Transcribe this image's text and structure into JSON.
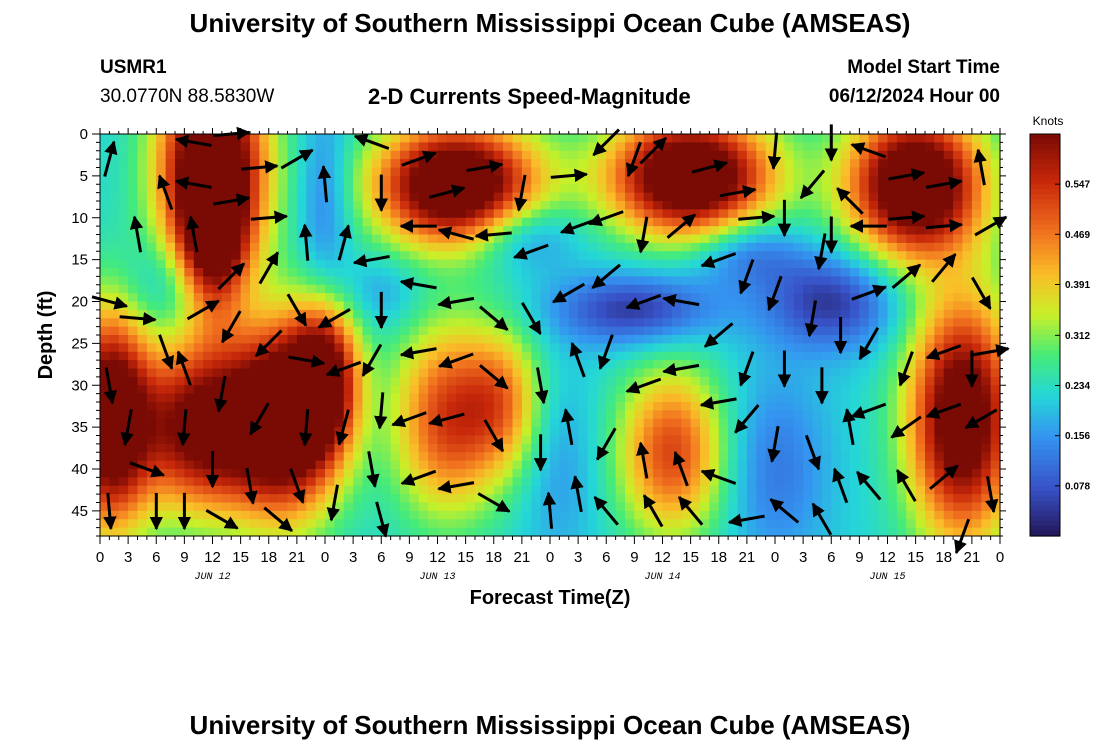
{
  "title": "University of Southern Mississippi Ocean Cube (AMSEAS)",
  "footer_title": "University of Southern Mississippi Ocean Cube (AMSEAS)",
  "station": {
    "id": "USMR1",
    "coords": "30.0770N  88.5830W"
  },
  "model_start": {
    "label": "Model Start Time",
    "value": "06/12/2024 Hour 00"
  },
  "subtitle": "2-D Currents Speed-Magnitude",
  "colors": {
    "vector": "#000000",
    "axis": "#000000"
  },
  "chart_data": {
    "type": "heatmap",
    "title": "2-D Currents Speed-Magnitude",
    "xlabel": "Forecast Time(Z)",
    "ylabel": "Depth (ft)",
    "x_hours": [
      0,
      96
    ],
    "ylim": [
      0,
      48
    ],
    "x_ticks": [
      {
        "h": 0,
        "label": "0"
      },
      {
        "h": 3,
        "label": "3"
      },
      {
        "h": 6,
        "label": "6"
      },
      {
        "h": 9,
        "label": "9"
      },
      {
        "h": 12,
        "label": "12"
      },
      {
        "h": 15,
        "label": "15"
      },
      {
        "h": 18,
        "label": "18"
      },
      {
        "h": 21,
        "label": "21"
      },
      {
        "h": 24,
        "label": "0"
      },
      {
        "h": 27,
        "label": "3"
      },
      {
        "h": 30,
        "label": "6"
      },
      {
        "h": 33,
        "label": "9"
      },
      {
        "h": 36,
        "label": "12"
      },
      {
        "h": 39,
        "label": "15"
      },
      {
        "h": 42,
        "label": "18"
      },
      {
        "h": 45,
        "label": "21"
      },
      {
        "h": 48,
        "label": "0"
      },
      {
        "h": 51,
        "label": "3"
      },
      {
        "h": 54,
        "label": "6"
      },
      {
        "h": 57,
        "label": "9"
      },
      {
        "h": 60,
        "label": "12"
      },
      {
        "h": 63,
        "label": "15"
      },
      {
        "h": 66,
        "label": "18"
      },
      {
        "h": 69,
        "label": "21"
      },
      {
        "h": 72,
        "label": "0"
      },
      {
        "h": 75,
        "label": "3"
      },
      {
        "h": 78,
        "label": "6"
      },
      {
        "h": 81,
        "label": "9"
      },
      {
        "h": 84,
        "label": "12"
      },
      {
        "h": 87,
        "label": "15"
      },
      {
        "h": 90,
        "label": "18"
      },
      {
        "h": 93,
        "label": "21"
      },
      {
        "h": 96,
        "label": "0"
      }
    ],
    "date_labels": [
      {
        "h": 12,
        "label": "JUN 12"
      },
      {
        "h": 36,
        "label": "JUN 13"
      },
      {
        "h": 60,
        "label": "JUN 14"
      },
      {
        "h": 84,
        "label": "JUN 15"
      }
    ],
    "y_ticks": [
      0,
      5,
      10,
      15,
      20,
      25,
      30,
      35,
      40,
      45
    ],
    "colorbar": {
      "unit": "Knots",
      "range": [
        0,
        0.625
      ],
      "ticks": [
        0.078,
        0.156,
        0.234,
        0.312,
        0.391,
        0.469,
        0.547
      ],
      "tick_labels": [
        "0.078",
        "0.156",
        "0.234",
        "0.312",
        "0.391",
        "0.469",
        "0.547"
      ]
    },
    "speed_features": [
      {
        "h": 12,
        "d": 4,
        "sh": 4,
        "sd": 9,
        "amp": 0.55
      },
      {
        "h": 12,
        "d": 14,
        "sh": 2.5,
        "sd": 6,
        "amp": 0.3
      },
      {
        "h": 38,
        "d": 6,
        "sh": 6,
        "sd": 5,
        "amp": 0.55
      },
      {
        "h": 63,
        "d": 5,
        "sh": 6,
        "sd": 5,
        "amp": 0.55
      },
      {
        "h": 87,
        "d": 6,
        "sh": 5,
        "sd": 6,
        "amp": 0.55
      },
      {
        "h": 1,
        "d": 34,
        "sh": 3,
        "sd": 9,
        "amp": 0.5
      },
      {
        "h": 11,
        "d": 35,
        "sh": 5,
        "sd": 7,
        "amp": 0.45
      },
      {
        "h": 20,
        "d": 34,
        "sh": 4,
        "sd": 8,
        "amp": 0.5
      },
      {
        "h": 24,
        "d": 29,
        "sh": 2.5,
        "sd": 6,
        "amp": 0.35
      },
      {
        "h": 37,
        "d": 34,
        "sh": 4,
        "sd": 8,
        "amp": 0.3
      },
      {
        "h": 43,
        "d": 32,
        "sh": 3,
        "sd": 6,
        "amp": 0.2
      },
      {
        "h": 61,
        "d": 38,
        "sh": 4,
        "sd": 7,
        "amp": 0.3
      },
      {
        "h": 92,
        "d": 34,
        "sh": 4,
        "sd": 10,
        "amp": 0.5
      },
      {
        "h": 9,
        "d": 18,
        "sh": 4,
        "sd": 4,
        "amp": -0.1
      },
      {
        "h": 24,
        "d": 8,
        "sh": 2,
        "sd": 8,
        "amp": -0.1
      },
      {
        "h": 45,
        "d": 12,
        "sh": 4,
        "sd": 3,
        "amp": -0.12
      },
      {
        "h": 57,
        "d": 21,
        "sh": 6,
        "sd": 3,
        "amp": -0.18
      },
      {
        "h": 69,
        "d": 14,
        "sh": 4,
        "sd": 3,
        "amp": -0.12
      },
      {
        "h": 78,
        "d": 20,
        "sh": 5,
        "sd": 4,
        "amp": -0.18
      },
      {
        "h": 72,
        "d": 40,
        "sh": 4,
        "sd": 8,
        "amp": -0.1
      },
      {
        "h": 49,
        "d": 40,
        "sh": 3,
        "sd": 8,
        "amp": -0.06
      },
      {
        "h": 30,
        "d": 19,
        "sh": 3,
        "sd": 3,
        "amp": -0.06
      }
    ],
    "vectors": [
      {
        "h": 1,
        "d": 3,
        "deg": 75
      },
      {
        "h": 4,
        "d": 12,
        "deg": 100
      },
      {
        "h": 7,
        "d": 7,
        "deg": 110
      },
      {
        "h": 1,
        "d": 20,
        "deg": -15
      },
      {
        "h": 4,
        "d": 22,
        "deg": -5
      },
      {
        "h": 7,
        "d": 26,
        "deg": -70
      },
      {
        "h": 1,
        "d": 30,
        "deg": -80
      },
      {
        "h": 3,
        "d": 35,
        "deg": -100
      },
      {
        "h": 5,
        "d": 40,
        "deg": -20
      },
      {
        "h": 1,
        "d": 45,
        "deg": -85
      },
      {
        "h": 6,
        "d": 45,
        "deg": -90
      },
      {
        "h": 10,
        "d": 1,
        "deg": 170
      },
      {
        "h": 14,
        "d": 0,
        "deg": 5
      },
      {
        "h": 17,
        "d": 4,
        "deg": 5
      },
      {
        "h": 10,
        "d": 6,
        "deg": 170
      },
      {
        "h": 14,
        "d": 8,
        "deg": 10
      },
      {
        "h": 18,
        "d": 10,
        "deg": 5
      },
      {
        "h": 10,
        "d": 12,
        "deg": 100
      },
      {
        "h": 14,
        "d": 17,
        "deg": 45
      },
      {
        "h": 18,
        "d": 16,
        "deg": 60
      },
      {
        "h": 11,
        "d": 21,
        "deg": 30
      },
      {
        "h": 14,
        "d": 23,
        "deg": -120
      },
      {
        "h": 18,
        "d": 25,
        "deg": -135
      },
      {
        "h": 9,
        "d": 28,
        "deg": 110
      },
      {
        "h": 13,
        "d": 31,
        "deg": -100
      },
      {
        "h": 17,
        "d": 34,
        "deg": -120
      },
      {
        "h": 9,
        "d": 35,
        "deg": -95
      },
      {
        "h": 12,
        "d": 40,
        "deg": -90
      },
      {
        "h": 16,
        "d": 42,
        "deg": -80
      },
      {
        "h": 9,
        "d": 45,
        "deg": -90
      },
      {
        "h": 13,
        "d": 46,
        "deg": -30
      },
      {
        "h": 19,
        "d": 46,
        "deg": -40
      },
      {
        "h": 21,
        "d": 3,
        "deg": 30
      },
      {
        "h": 22,
        "d": 13,
        "deg": 95
      },
      {
        "h": 21,
        "d": 21,
        "deg": -60
      },
      {
        "h": 22,
        "d": 27,
        "deg": -10
      },
      {
        "h": 22,
        "d": 35,
        "deg": -95
      },
      {
        "h": 21,
        "d": 42,
        "deg": -70
      },
      {
        "h": 24,
        "d": 6,
        "deg": 95
      },
      {
        "h": 26,
        "d": 13,
        "deg": 75
      },
      {
        "h": 25,
        "d": 22,
        "deg": -150
      },
      {
        "h": 26,
        "d": 28,
        "deg": 200
      },
      {
        "h": 26,
        "d": 35,
        "deg": -105
      },
      {
        "h": 25,
        "d": 44,
        "deg": -100
      },
      {
        "h": 29,
        "d": 1,
        "deg": 160
      },
      {
        "h": 30,
        "d": 7,
        "deg": 270
      },
      {
        "h": 29,
        "d": 15,
        "deg": 190
      },
      {
        "h": 30,
        "d": 21,
        "deg": 270
      },
      {
        "h": 29,
        "d": 27,
        "deg": -120
      },
      {
        "h": 30,
        "d": 33,
        "deg": -95
      },
      {
        "h": 29,
        "d": 40,
        "deg": -80
      },
      {
        "h": 30,
        "d": 46,
        "deg": -75
      },
      {
        "h": 34,
        "d": 3,
        "deg": 20
      },
      {
        "h": 37,
        "d": 7,
        "deg": 15
      },
      {
        "h": 41,
        "d": 4,
        "deg": 10
      },
      {
        "h": 34,
        "d": 11,
        "deg": 180
      },
      {
        "h": 38,
        "d": 12,
        "deg": 165
      },
      {
        "h": 42,
        "d": 12,
        "deg": 185
      },
      {
        "h": 34,
        "d": 18,
        "deg": 170
      },
      {
        "h": 38,
        "d": 20,
        "deg": 190
      },
      {
        "h": 42,
        "d": 22,
        "deg": -40
      },
      {
        "h": 34,
        "d": 26,
        "deg": 190
      },
      {
        "h": 38,
        "d": 27,
        "deg": 200
      },
      {
        "h": 42,
        "d": 29,
        "deg": -40
      },
      {
        "h": 33,
        "d": 34,
        "deg": 200
      },
      {
        "h": 37,
        "d": 34,
        "deg": 195
      },
      {
        "h": 42,
        "d": 36,
        "deg": -60
      },
      {
        "h": 34,
        "d": 41,
        "deg": 200
      },
      {
        "h": 38,
        "d": 42,
        "deg": 190
      },
      {
        "h": 42,
        "d": 44,
        "deg": -30
      },
      {
        "h": 45,
        "d": 7,
        "deg": 260
      },
      {
        "h": 46,
        "d": 14,
        "deg": 200
      },
      {
        "h": 46,
        "d": 22,
        "deg": -60
      },
      {
        "h": 47,
        "d": 30,
        "deg": -80
      },
      {
        "h": 47,
        "d": 38,
        "deg": -90
      },
      {
        "h": 48,
        "d": 45,
        "deg": 95
      },
      {
        "h": 50,
        "d": 5,
        "deg": 5
      },
      {
        "h": 51,
        "d": 11,
        "deg": 200
      },
      {
        "h": 50,
        "d": 19,
        "deg": 210
      },
      {
        "h": 51,
        "d": 27,
        "deg": 110
      },
      {
        "h": 50,
        "d": 35,
        "deg": 100
      },
      {
        "h": 51,
        "d": 43,
        "deg": 100
      },
      {
        "h": 54,
        "d": 1,
        "deg": 225
      },
      {
        "h": 57,
        "d": 3,
        "deg": 250
      },
      {
        "h": 59,
        "d": 2,
        "deg": 45
      },
      {
        "h": 54,
        "d": 10,
        "deg": 200
      },
      {
        "h": 58,
        "d": 12,
        "deg": 260
      },
      {
        "h": 62,
        "d": 11,
        "deg": 40
      },
      {
        "h": 54,
        "d": 17,
        "deg": 220
      },
      {
        "h": 58,
        "d": 20,
        "deg": 200
      },
      {
        "h": 62,
        "d": 20,
        "deg": 170
      },
      {
        "h": 54,
        "d": 26,
        "deg": 250
      },
      {
        "h": 58,
        "d": 30,
        "deg": 200
      },
      {
        "h": 62,
        "d": 28,
        "deg": 190
      },
      {
        "h": 54,
        "d": 37,
        "deg": 240
      },
      {
        "h": 58,
        "d": 39,
        "deg": 100
      },
      {
        "h": 62,
        "d": 40,
        "deg": 110
      },
      {
        "h": 54,
        "d": 45,
        "deg": 130
      },
      {
        "h": 59,
        "d": 45,
        "deg": 120
      },
      {
        "h": 63,
        "d": 45,
        "deg": 130
      },
      {
        "h": 65,
        "d": 4,
        "deg": 15
      },
      {
        "h": 68,
        "d": 7,
        "deg": 10
      },
      {
        "h": 70,
        "d": 10,
        "deg": 5
      },
      {
        "h": 66,
        "d": 15,
        "deg": 200
      },
      {
        "h": 69,
        "d": 17,
        "deg": 250
      },
      {
        "h": 66,
        "d": 24,
        "deg": 220
      },
      {
        "h": 69,
        "d": 28,
        "deg": 250
      },
      {
        "h": 66,
        "d": 32,
        "deg": 190
      },
      {
        "h": 69,
        "d": 34,
        "deg": 230
      },
      {
        "h": 66,
        "d": 41,
        "deg": 160
      },
      {
        "h": 69,
        "d": 46,
        "deg": 190
      },
      {
        "h": 72,
        "d": 2,
        "deg": 265
      },
      {
        "h": 73,
        "d": 10,
        "deg": 270
      },
      {
        "h": 72,
        "d": 19,
        "deg": 250
      },
      {
        "h": 73,
        "d": 28,
        "deg": 270
      },
      {
        "h": 72,
        "d": 37,
        "deg": 260
      },
      {
        "h": 73,
        "d": 45,
        "deg": 140
      },
      {
        "h": 76,
        "d": 6,
        "deg": 230
      },
      {
        "h": 77,
        "d": 14,
        "deg": 260
      },
      {
        "h": 76,
        "d": 22,
        "deg": 260
      },
      {
        "h": 77,
        "d": 30,
        "deg": 270
      },
      {
        "h": 76,
        "d": 38,
        "deg": 290
      },
      {
        "h": 77,
        "d": 46,
        "deg": 120
      },
      {
        "h": 78,
        "d": 1,
        "deg": 270
      },
      {
        "h": 80,
        "d": 8,
        "deg": 135
      },
      {
        "h": 78,
        "d": 12,
        "deg": 270
      },
      {
        "h": 79,
        "d": 24,
        "deg": 270
      },
      {
        "h": 80,
        "d": 35,
        "deg": 100
      },
      {
        "h": 79,
        "d": 42,
        "deg": 110
      },
      {
        "h": 82,
        "d": 2,
        "deg": 160
      },
      {
        "h": 86,
        "d": 5,
        "deg": 10
      },
      {
        "h": 90,
        "d": 6,
        "deg": 10
      },
      {
        "h": 82,
        "d": 11,
        "deg": 180
      },
      {
        "h": 86,
        "d": 10,
        "deg": 5
      },
      {
        "h": 90,
        "d": 11,
        "deg": 5
      },
      {
        "h": 82,
        "d": 19,
        "deg": 20
      },
      {
        "h": 86,
        "d": 17,
        "deg": 40
      },
      {
        "h": 90,
        "d": 16,
        "deg": 50
      },
      {
        "h": 82,
        "d": 25,
        "deg": 240
      },
      {
        "h": 86,
        "d": 28,
        "deg": 250
      },
      {
        "h": 90,
        "d": 26,
        "deg": 200
      },
      {
        "h": 82,
        "d": 33,
        "deg": 200
      },
      {
        "h": 86,
        "d": 35,
        "deg": 215
      },
      {
        "h": 90,
        "d": 33,
        "deg": 200
      },
      {
        "h": 82,
        "d": 42,
        "deg": 130
      },
      {
        "h": 86,
        "d": 42,
        "deg": 120
      },
      {
        "h": 90,
        "d": 41,
        "deg": 40
      },
      {
        "h": 94,
        "d": 4,
        "deg": 100
      },
      {
        "h": 95,
        "d": 11,
        "deg": 30
      },
      {
        "h": 94,
        "d": 19,
        "deg": 300
      },
      {
        "h": 95,
        "d": 26,
        "deg": 10
      },
      {
        "h": 94,
        "d": 34,
        "deg": 210
      },
      {
        "h": 95,
        "d": 43,
        "deg": 280
      },
      {
        "h": 93,
        "d": 28,
        "deg": 270
      },
      {
        "h": 92,
        "d": 48,
        "deg": 250
      }
    ]
  }
}
